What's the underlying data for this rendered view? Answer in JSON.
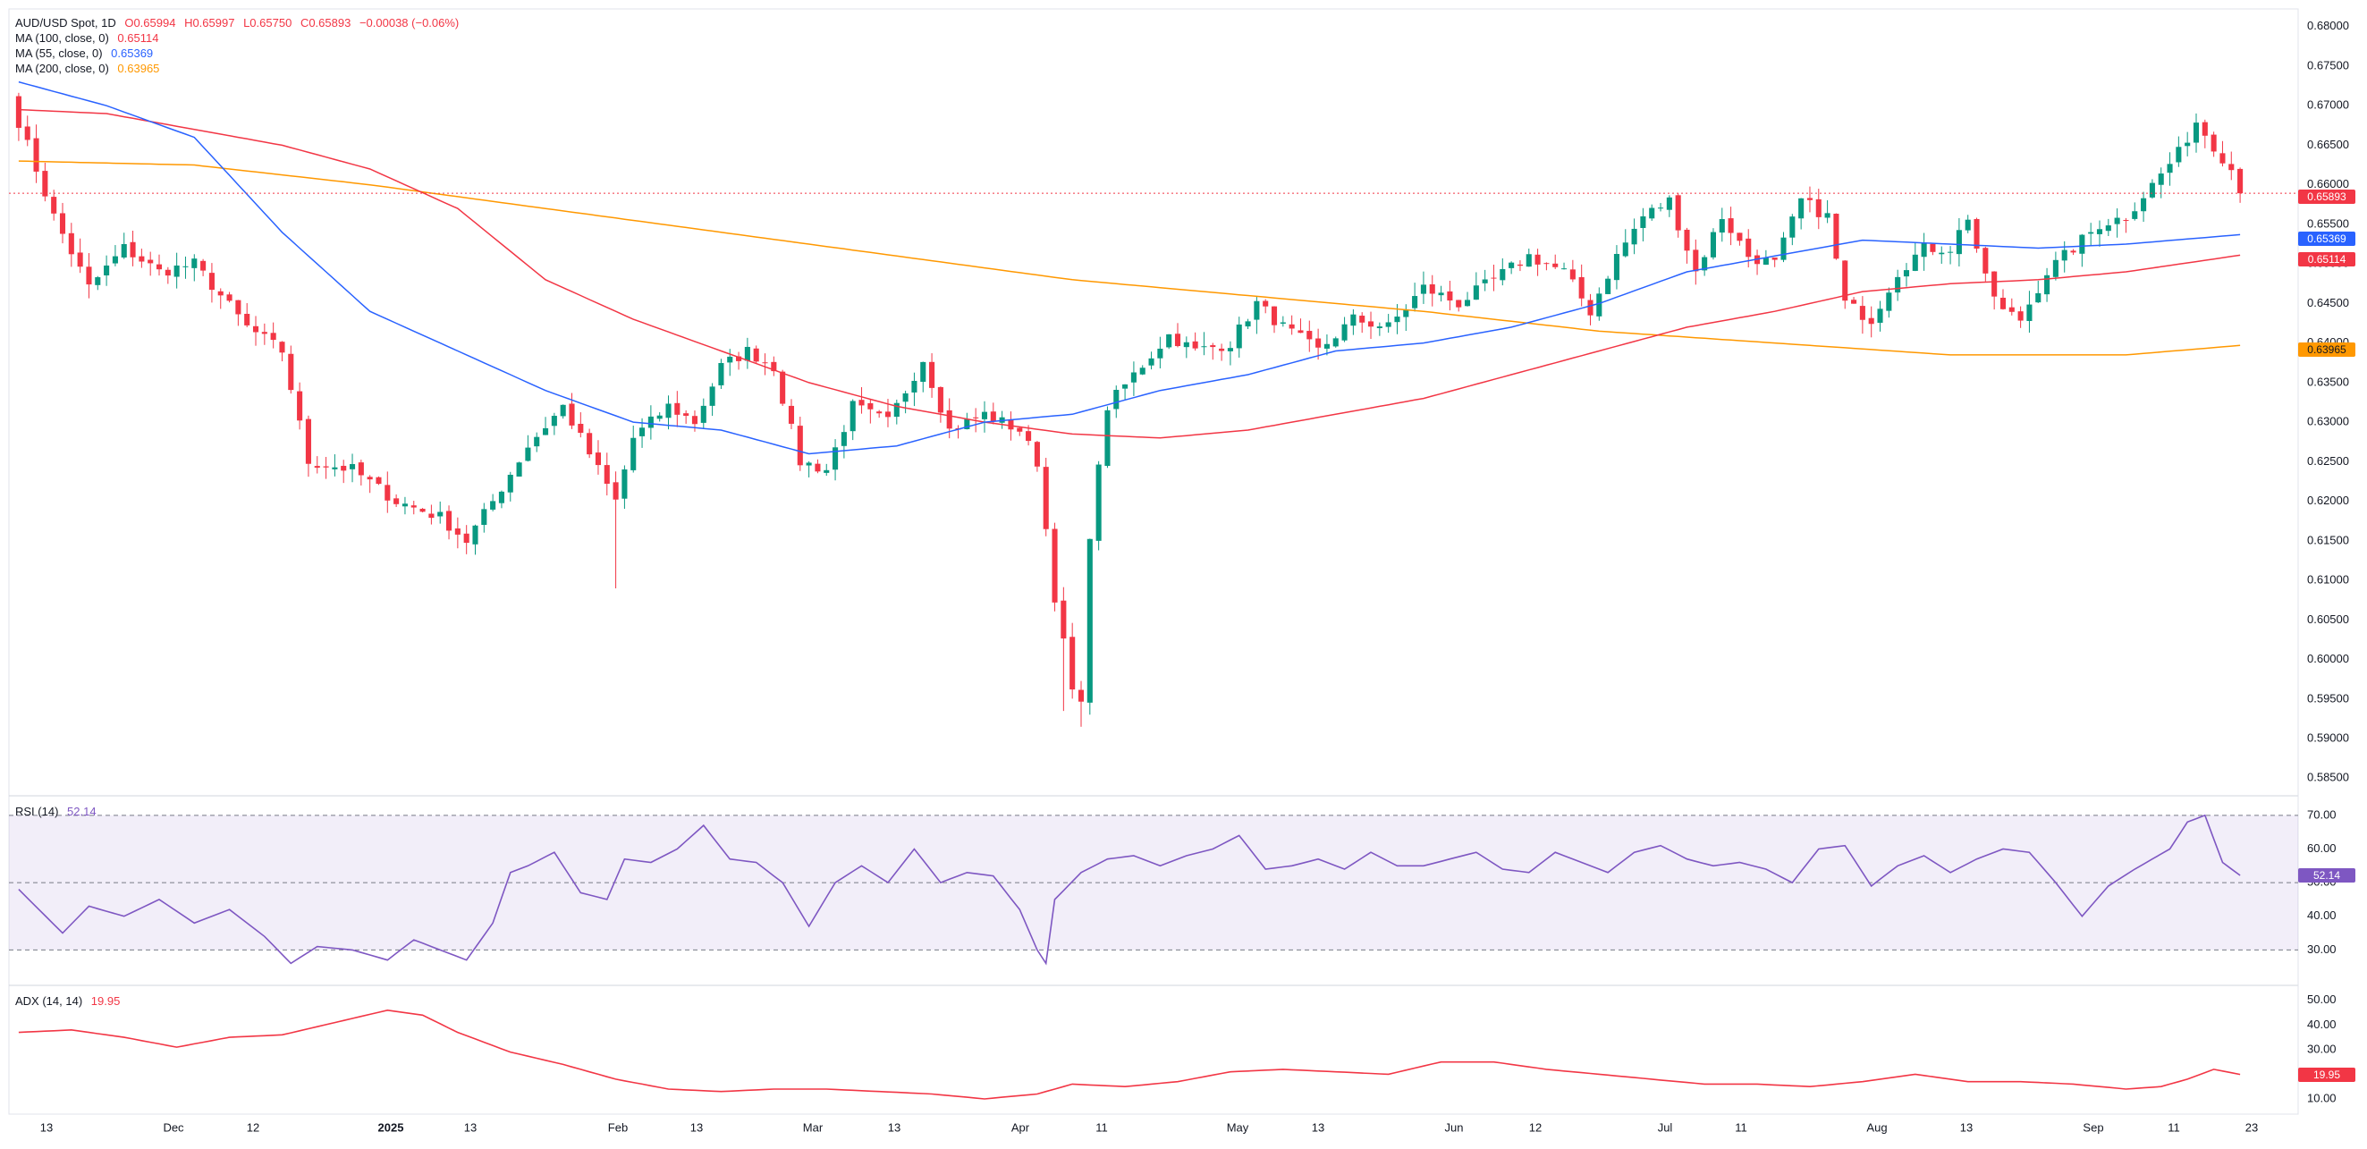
{
  "legend": {
    "symbol": "AUD/USD Spot, 1D",
    "open": "O0.65994",
    "high": "H0.65997",
    "low": "L0.65750",
    "close": "C0.65893",
    "change": "−0.00038 (−0.06%)",
    "ma100_label": "MA (100, close, 0)",
    "ma100_value": "0.65114",
    "ma55_label": "MA (55, close, 0)",
    "ma55_value": "0.65369",
    "ma200_label": "MA (200, close, 0)",
    "ma200_value": "0.63965",
    "rsi_label": "RSI (14)",
    "rsi_value": "52.14",
    "adx_label": "ADX (14, 14)",
    "adx_value": "19.95"
  },
  "tags": {
    "price": "0.65893",
    "ma55": "0.65369",
    "ma100": "0.65114",
    "ma200": "0.63965",
    "rsi": "52.14",
    "adx": "19.95"
  },
  "colors": {
    "up": "#089981",
    "down": "#f23645",
    "ma100": "#f23645",
    "ma55": "#2962ff",
    "ma200": "#ff9800",
    "rsi": "#7e57c2",
    "adx": "#f23645"
  },
  "chart_data": [
    {
      "type": "candlestick",
      "title": "AUD/USD Spot, 1D",
      "ylim": [
        0.583,
        0.682
      ],
      "y_ticks": [
        "0.68000",
        "0.67500",
        "0.67000",
        "0.66500",
        "0.66000",
        "0.65500",
        "0.65000",
        "0.64500",
        "0.64000",
        "0.63500",
        "0.63000",
        "0.62500",
        "0.62000",
        "0.61500",
        "0.61000",
        "0.60500",
        "0.60000",
        "0.59500",
        "0.59000",
        "0.58500"
      ],
      "x_ticks": [
        "13",
        "Dec",
        "12",
        "2025",
        "13",
        "Feb",
        "13",
        "Mar",
        "13",
        "Apr",
        "11",
        "May",
        "13",
        "Jun",
        "12",
        "Jul",
        "11",
        "Aug",
        "13",
        "Sep",
        "11",
        "23"
      ],
      "last_price": 0.65893,
      "price_anchors": [
        [
          0,
          0.668
        ],
        [
          4,
          0.656
        ],
        [
          8,
          0.647
        ],
        [
          12,
          0.652
        ],
        [
          16,
          0.649
        ],
        [
          20,
          0.65
        ],
        [
          26,
          0.642
        ],
        [
          30,
          0.639
        ],
        [
          33,
          0.625
        ],
        [
          38,
          0.624
        ],
        [
          43,
          0.62
        ],
        [
          48,
          0.618
        ],
        [
          51,
          0.615
        ],
        [
          54,
          0.62
        ],
        [
          58,
          0.627
        ],
        [
          62,
          0.632
        ],
        [
          65,
          0.626
        ],
        [
          68,
          0.62
        ],
        [
          70,
          0.628
        ],
        [
          74,
          0.632
        ],
        [
          77,
          0.63
        ],
        [
          80,
          0.637
        ],
        [
          83,
          0.639
        ],
        [
          86,
          0.637
        ],
        [
          89,
          0.625
        ],
        [
          92,
          0.624
        ],
        [
          95,
          0.632
        ],
        [
          99,
          0.63
        ],
        [
          103,
          0.638
        ],
        [
          106,
          0.629
        ],
        [
          110,
          0.631
        ],
        [
          114,
          0.629
        ],
        [
          116,
          0.625
        ],
        [
          118,
          0.608
        ],
        [
          120,
          0.596
        ],
        [
          121,
          0.594
        ],
        [
          122,
          0.616
        ],
        [
          124,
          0.632
        ],
        [
          127,
          0.636
        ],
        [
          131,
          0.641
        ],
        [
          134,
          0.639
        ],
        [
          138,
          0.64
        ],
        [
          141,
          0.645
        ],
        [
          144,
          0.642
        ],
        [
          148,
          0.639
        ],
        [
          152,
          0.643
        ],
        [
          156,
          0.642
        ],
        [
          160,
          0.647
        ],
        [
          164,
          0.645
        ],
        [
          168,
          0.648
        ],
        [
          172,
          0.651
        ],
        [
          176,
          0.649
        ],
        [
          179,
          0.644
        ],
        [
          182,
          0.651
        ],
        [
          185,
          0.656
        ],
        [
          188,
          0.658
        ],
        [
          191,
          0.649
        ],
        [
          194,
          0.656
        ],
        [
          197,
          0.651
        ],
        [
          200,
          0.65
        ],
        [
          203,
          0.658
        ],
        [
          206,
          0.656
        ],
        [
          208,
          0.645
        ],
        [
          211,
          0.643
        ],
        [
          214,
          0.649
        ],
        [
          217,
          0.652
        ],
        [
          220,
          0.652
        ],
        [
          222,
          0.656
        ],
        [
          224,
          0.648
        ],
        [
          226,
          0.644
        ],
        [
          228,
          0.643
        ],
        [
          231,
          0.649
        ],
        [
          234,
          0.652
        ],
        [
          237,
          0.655
        ],
        [
          240,
          0.656
        ],
        [
          243,
          0.66
        ],
        [
          246,
          0.664
        ],
        [
          248,
          0.668
        ],
        [
          250,
          0.665
        ],
        [
          252,
          0.662
        ],
        [
          253,
          0.6589
        ]
      ],
      "ma55_anchors": [
        [
          0,
          0.673
        ],
        [
          10,
          0.67
        ],
        [
          20,
          0.666
        ],
        [
          30,
          0.654
        ],
        [
          40,
          0.644
        ],
        [
          50,
          0.639
        ],
        [
          60,
          0.634
        ],
        [
          70,
          0.63
        ],
        [
          80,
          0.629
        ],
        [
          90,
          0.626
        ],
        [
          100,
          0.627
        ],
        [
          110,
          0.63
        ],
        [
          120,
          0.631
        ],
        [
          130,
          0.634
        ],
        [
          140,
          0.636
        ],
        [
          150,
          0.639
        ],
        [
          160,
          0.64
        ],
        [
          170,
          0.642
        ],
        [
          180,
          0.645
        ],
        [
          190,
          0.649
        ],
        [
          200,
          0.651
        ],
        [
          210,
          0.653
        ],
        [
          220,
          0.6525
        ],
        [
          230,
          0.652
        ],
        [
          240,
          0.6525
        ],
        [
          253,
          0.6537
        ]
      ],
      "ma100_anchors": [
        [
          0,
          0.6695
        ],
        [
          10,
          0.669
        ],
        [
          20,
          0.667
        ],
        [
          30,
          0.665
        ],
        [
          40,
          0.662
        ],
        [
          50,
          0.657
        ],
        [
          60,
          0.648
        ],
        [
          70,
          0.643
        ],
        [
          80,
          0.639
        ],
        [
          90,
          0.635
        ],
        [
          100,
          0.632
        ],
        [
          110,
          0.63
        ],
        [
          120,
          0.6285
        ],
        [
          130,
          0.628
        ],
        [
          140,
          0.629
        ],
        [
          150,
          0.631
        ],
        [
          160,
          0.633
        ],
        [
          170,
          0.636
        ],
        [
          180,
          0.639
        ],
        [
          190,
          0.642
        ],
        [
          200,
          0.644
        ],
        [
          210,
          0.6465
        ],
        [
          220,
          0.6475
        ],
        [
          230,
          0.648
        ],
        [
          240,
          0.649
        ],
        [
          253,
          0.6511
        ]
      ],
      "ma200_anchors": [
        [
          0,
          0.663
        ],
        [
          20,
          0.6625
        ],
        [
          40,
          0.66
        ],
        [
          60,
          0.657
        ],
        [
          80,
          0.654
        ],
        [
          100,
          0.651
        ],
        [
          120,
          0.648
        ],
        [
          140,
          0.646
        ],
        [
          160,
          0.644
        ],
        [
          180,
          0.6415
        ],
        [
          200,
          0.64
        ],
        [
          220,
          0.6385
        ],
        [
          240,
          0.6385
        ],
        [
          253,
          0.6397
        ]
      ]
    },
    {
      "type": "line",
      "title": "RSI (14)",
      "ylim": [
        20,
        75
      ],
      "y_ticks": [
        "70.00",
        "60.00",
        "50.00",
        "40.00",
        "30.00"
      ],
      "band": [
        30,
        70
      ],
      "midline": 50,
      "last_value": 52.14,
      "anchors": [
        [
          0,
          48
        ],
        [
          5,
          35
        ],
        [
          8,
          43
        ],
        [
          12,
          40
        ],
        [
          16,
          45
        ],
        [
          20,
          38
        ],
        [
          24,
          42
        ],
        [
          28,
          34
        ],
        [
          31,
          26
        ],
        [
          34,
          31
        ],
        [
          38,
          30
        ],
        [
          42,
          27
        ],
        [
          45,
          33
        ],
        [
          48,
          30
        ],
        [
          51,
          27
        ],
        [
          54,
          38
        ],
        [
          56,
          53
        ],
        [
          58,
          55
        ],
        [
          61,
          59
        ],
        [
          64,
          47
        ],
        [
          67,
          45
        ],
        [
          69,
          57
        ],
        [
          72,
          56
        ],
        [
          75,
          60
        ],
        [
          78,
          67
        ],
        [
          81,
          57
        ],
        [
          84,
          56
        ],
        [
          87,
          50
        ],
        [
          90,
          37
        ],
        [
          93,
          50
        ],
        [
          96,
          55
        ],
        [
          99,
          50
        ],
        [
          102,
          60
        ],
        [
          105,
          50
        ],
        [
          108,
          53
        ],
        [
          111,
          52
        ],
        [
          114,
          42
        ],
        [
          116,
          30
        ],
        [
          117,
          26
        ],
        [
          118,
          45
        ],
        [
          121,
          53
        ],
        [
          124,
          57
        ],
        [
          127,
          58
        ],
        [
          130,
          55
        ],
        [
          133,
          58
        ],
        [
          136,
          60
        ],
        [
          139,
          64
        ],
        [
          142,
          54
        ],
        [
          145,
          55
        ],
        [
          148,
          57
        ],
        [
          151,
          54
        ],
        [
          154,
          59
        ],
        [
          157,
          55
        ],
        [
          160,
          55
        ],
        [
          163,
          57
        ],
        [
          166,
          59
        ],
        [
          169,
          54
        ],
        [
          172,
          53
        ],
        [
          175,
          59
        ],
        [
          178,
          56
        ],
        [
          181,
          53
        ],
        [
          184,
          59
        ],
        [
          187,
          61
        ],
        [
          190,
          57
        ],
        [
          193,
          55
        ],
        [
          196,
          56
        ],
        [
          199,
          54
        ],
        [
          202,
          50
        ],
        [
          205,
          60
        ],
        [
          208,
          61
        ],
        [
          211,
          49
        ],
        [
          214,
          55
        ],
        [
          217,
          58
        ],
        [
          220,
          53
        ],
        [
          223,
          57
        ],
        [
          226,
          60
        ],
        [
          229,
          59
        ],
        [
          232,
          50
        ],
        [
          235,
          40
        ],
        [
          238,
          49
        ],
        [
          241,
          54
        ],
        [
          243,
          57
        ],
        [
          245,
          60
        ],
        [
          247,
          68
        ],
        [
          249,
          70
        ],
        [
          251,
          56
        ],
        [
          253,
          52.14
        ]
      ]
    },
    {
      "type": "line",
      "title": "ADX (14, 14)",
      "ylim": [
        6,
        55
      ],
      "y_ticks": [
        "50.00",
        "40.00",
        "30.00",
        "20.00",
        "10.00"
      ],
      "last_value": 19.95,
      "anchors": [
        [
          0,
          37
        ],
        [
          6,
          38
        ],
        [
          12,
          35
        ],
        [
          18,
          31
        ],
        [
          24,
          35
        ],
        [
          30,
          36
        ],
        [
          36,
          41
        ],
        [
          42,
          46
        ],
        [
          46,
          44
        ],
        [
          50,
          37
        ],
        [
          56,
          29
        ],
        [
          62,
          24
        ],
        [
          68,
          18
        ],
        [
          74,
          14
        ],
        [
          80,
          13
        ],
        [
          86,
          14
        ],
        [
          92,
          14
        ],
        [
          98,
          13
        ],
        [
          104,
          12
        ],
        [
          110,
          10
        ],
        [
          116,
          12
        ],
        [
          120,
          16
        ],
        [
          126,
          15
        ],
        [
          132,
          17
        ],
        [
          138,
          21
        ],
        [
          144,
          22
        ],
        [
          150,
          21
        ],
        [
          156,
          20
        ],
        [
          162,
          25
        ],
        [
          168,
          25
        ],
        [
          174,
          22
        ],
        [
          180,
          20
        ],
        [
          186,
          18
        ],
        [
          192,
          16
        ],
        [
          198,
          16
        ],
        [
          204,
          15
        ],
        [
          210,
          17
        ],
        [
          216,
          20
        ],
        [
          222,
          17
        ],
        [
          228,
          17
        ],
        [
          234,
          16
        ],
        [
          240,
          14
        ],
        [
          244,
          15
        ],
        [
          247,
          18
        ],
        [
          250,
          22
        ],
        [
          253,
          19.95
        ]
      ]
    }
  ]
}
